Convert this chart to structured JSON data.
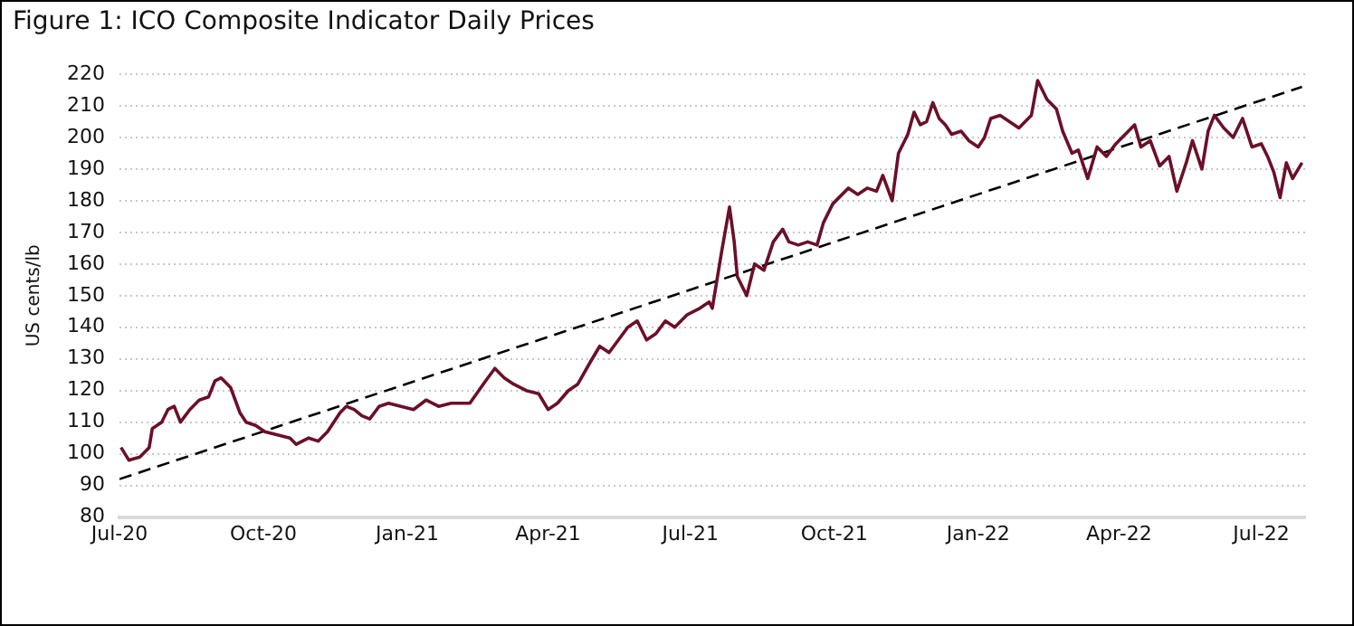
{
  "chart_data": {
    "type": "line",
    "title": "Figure 1: ICO Composite Indicator Daily Prices",
    "ylabel": "US cents/lb",
    "xlim": [
      "2020-07-01",
      "2022-07-29"
    ],
    "xticks": [
      {
        "value": "2020-07-01",
        "label": "Jul-20"
      },
      {
        "value": "2020-10-01",
        "label": "Oct-20"
      },
      {
        "value": "2021-01-01",
        "label": "Jan-21"
      },
      {
        "value": "2021-04-01",
        "label": "Apr-21"
      },
      {
        "value": "2021-07-01",
        "label": "Jul-21"
      },
      {
        "value": "2021-10-01",
        "label": "Oct-21"
      },
      {
        "value": "2022-01-01",
        "label": "Jan-22"
      },
      {
        "value": "2022-04-01",
        "label": "Apr-22"
      },
      {
        "value": "2022-07-01",
        "label": "Jul-22"
      }
    ],
    "ylim": [
      80,
      220
    ],
    "yticks": [
      80,
      90,
      100,
      110,
      120,
      130,
      140,
      150,
      160,
      170,
      180,
      190,
      200,
      210,
      220
    ],
    "grid": "y",
    "legend": false,
    "marker": "none",
    "series": [
      {
        "color": "#6b0f2a",
        "line_style": "solid",
        "x": [
          "2020-07-02",
          "2020-07-07",
          "2020-07-14",
          "2020-07-20",
          "2020-07-22",
          "2020-07-28",
          "2020-08-01",
          "2020-08-05",
          "2020-08-09",
          "2020-08-15",
          "2020-08-21",
          "2020-08-27",
          "2020-08-31",
          "2020-09-04",
          "2020-09-10",
          "2020-09-16",
          "2020-09-20",
          "2020-09-26",
          "2020-10-02",
          "2020-10-10",
          "2020-10-18",
          "2020-10-22",
          "2020-10-30",
          "2020-11-05",
          "2020-11-11",
          "2020-11-19",
          "2020-11-23",
          "2020-11-28",
          "2020-12-03",
          "2020-12-08",
          "2020-12-14",
          "2020-12-20",
          "2020-12-28",
          "2021-01-05",
          "2021-01-13",
          "2021-01-21",
          "2021-01-29",
          "2021-02-10",
          "2021-02-20",
          "2021-02-26",
          "2021-03-04",
          "2021-03-10",
          "2021-03-18",
          "2021-03-26",
          "2021-04-01",
          "2021-04-07",
          "2021-04-14",
          "2021-04-20",
          "2021-04-28",
          "2021-05-04",
          "2021-05-10",
          "2021-05-16",
          "2021-05-22",
          "2021-05-28",
          "2021-06-03",
          "2021-06-09",
          "2021-06-15",
          "2021-06-21",
          "2021-06-29",
          "2021-07-07",
          "2021-07-13",
          "2021-07-15",
          "2021-07-21",
          "2021-07-26",
          "2021-07-29",
          "2021-07-31",
          "2021-08-06",
          "2021-08-11",
          "2021-08-17",
          "2021-08-23",
          "2021-08-29",
          "2021-09-02",
          "2021-09-08",
          "2021-09-14",
          "2021-09-20",
          "2021-09-24",
          "2021-09-30",
          "2021-10-04",
          "2021-10-10",
          "2021-10-16",
          "2021-10-22",
          "2021-10-28",
          "2021-11-01",
          "2021-11-07",
          "2021-11-11",
          "2021-11-17",
          "2021-11-21",
          "2021-11-25",
          "2021-11-29",
          "2021-12-03",
          "2021-12-07",
          "2021-12-11",
          "2021-12-15",
          "2021-12-21",
          "2021-12-26",
          "2022-01-01",
          "2022-01-05",
          "2022-01-09",
          "2022-01-15",
          "2022-01-21",
          "2022-01-27",
          "2022-02-04",
          "2022-02-08",
          "2022-02-14",
          "2022-02-20",
          "2022-02-24",
          "2022-03-02",
          "2022-03-06",
          "2022-03-12",
          "2022-03-18",
          "2022-03-24",
          "2022-03-30",
          "2022-04-05",
          "2022-04-11",
          "2022-04-15",
          "2022-04-21",
          "2022-04-27",
          "2022-05-03",
          "2022-05-08",
          "2022-05-14",
          "2022-05-18",
          "2022-05-24",
          "2022-05-28",
          "2022-06-01",
          "2022-06-07",
          "2022-06-13",
          "2022-06-19",
          "2022-06-25",
          "2022-07-01",
          "2022-07-05",
          "2022-07-09",
          "2022-07-13",
          "2022-07-17",
          "2022-07-21",
          "2022-07-27"
        ],
        "values": [
          102,
          98,
          99,
          102,
          108,
          110,
          114,
          115,
          110,
          114,
          117,
          118,
          123,
          124,
          121,
          113,
          110,
          109,
          107,
          106,
          105,
          103,
          105,
          104,
          107,
          113,
          115,
          114,
          112,
          111,
          115,
          116,
          115,
          114,
          117,
          115,
          116,
          116,
          123,
          127,
          124,
          122,
          120,
          119,
          114,
          116,
          120,
          122,
          129,
          134,
          132,
          136,
          140,
          142,
          136,
          138,
          142,
          140,
          144,
          146,
          148,
          146,
          164,
          178,
          167,
          156,
          150,
          160,
          158,
          167,
          171,
          167,
          166,
          167,
          166,
          173,
          179,
          181,
          184,
          182,
          184,
          183,
          188,
          180,
          195,
          201,
          208,
          204,
          205,
          211,
          206,
          204,
          201,
          202,
          199,
          197,
          200,
          206,
          207,
          205,
          203,
          207,
          218,
          212,
          209,
          202,
          195,
          196,
          187,
          197,
          194,
          198,
          201,
          204,
          197,
          199,
          191,
          194,
          183,
          192,
          199,
          190,
          202,
          207,
          203,
          200,
          206,
          197,
          198,
          194,
          189,
          181,
          192,
          187,
          192
        ]
      },
      {
        "color": "#000000",
        "line_style": "dashed",
        "x": [
          "2020-07-01",
          "2022-07-27"
        ],
        "values": [
          92,
          216
        ]
      }
    ]
  }
}
